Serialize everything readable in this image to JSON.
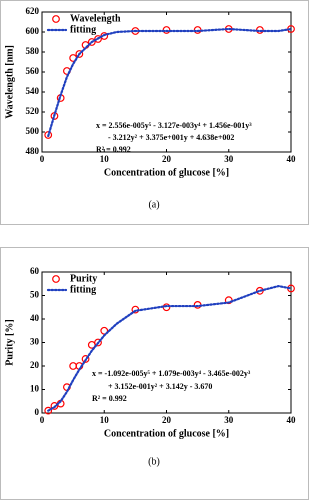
{
  "chart_data": [
    {
      "type": "scatter",
      "caption": "(a)",
      "ylabel": "Wavelength [nm]",
      "xlabel": "Concentration of glucose [%]",
      "xlim": [
        0,
        40
      ],
      "ylim": [
        480,
        620
      ],
      "xticks": [
        0,
        10,
        20,
        30,
        40
      ],
      "yticks": [
        480,
        500,
        520,
        540,
        560,
        580,
        600,
        620
      ],
      "legend": "top-left",
      "series": [
        {
          "name": "Wavelength",
          "type": "scatter",
          "color": "#ff0000",
          "x": [
            1,
            2,
            3,
            4,
            5,
            6,
            7,
            8,
            9,
            10,
            15,
            20,
            25,
            30,
            35,
            40
          ],
          "values": [
            497,
            516,
            534,
            561,
            574,
            578,
            587,
            590,
            593,
            596,
            601,
            602,
            602,
            603,
            602,
            603
          ]
        },
        {
          "name": "fitting",
          "type": "line",
          "color": "#1f3fbf",
          "x": [
            1,
            2,
            3,
            4,
            5,
            6,
            8,
            10,
            12,
            15,
            20,
            25,
            30,
            35,
            38,
            40
          ],
          "values": [
            496,
            517,
            537,
            555,
            568,
            578,
            590,
            597,
            600,
            601,
            601,
            601,
            603,
            601,
            601,
            603
          ]
        }
      ],
      "annotations": [
        "x = 2.556e-005y⁵ - 3.127e-003y⁴ + 1.456e-001y³",
        "- 3.212y² + 3.375e+001y + 4.638e+002",
        "R² = 0.992"
      ]
    },
    {
      "type": "scatter",
      "caption": "(b)",
      "ylabel": "Purity [%]",
      "xlabel": "Concentration of glucose [%]",
      "xlim": [
        0,
        40
      ],
      "ylim": [
        0,
        60
      ],
      "xticks": [
        0,
        10,
        20,
        30,
        40
      ],
      "yticks": [
        0,
        10,
        20,
        30,
        40,
        50,
        60
      ],
      "legend": "top-left",
      "series": [
        {
          "name": "Purity",
          "type": "scatter",
          "color": "#ff0000",
          "x": [
            1,
            2,
            3,
            4,
            5,
            6,
            7,
            8,
            9,
            10,
            15,
            20,
            25,
            30,
            35,
            40
          ],
          "values": [
            1,
            3,
            4,
            11,
            20,
            20,
            23,
            29,
            30,
            35,
            44,
            45,
            46,
            48,
            52,
            53
          ]
        },
        {
          "name": "fitting",
          "type": "line",
          "color": "#1f3fbf",
          "x": [
            1,
            2,
            3,
            4,
            5,
            6,
            7,
            8,
            10,
            12,
            15,
            20,
            25,
            30,
            35,
            38,
            40
          ],
          "values": [
            1,
            2.5,
            5,
            9,
            14,
            18.5,
            22.5,
            26.5,
            33,
            38,
            43.5,
            45.5,
            45.5,
            47,
            52,
            54,
            53
          ]
        }
      ],
      "annotations": [
        "x = -1.092e-005y⁵ + 1.079e-003y⁴ - 3.465e-002y³",
        "+ 3.152e-001y² + 3.142y - 3.670",
        "R² = 0.992"
      ]
    }
  ]
}
